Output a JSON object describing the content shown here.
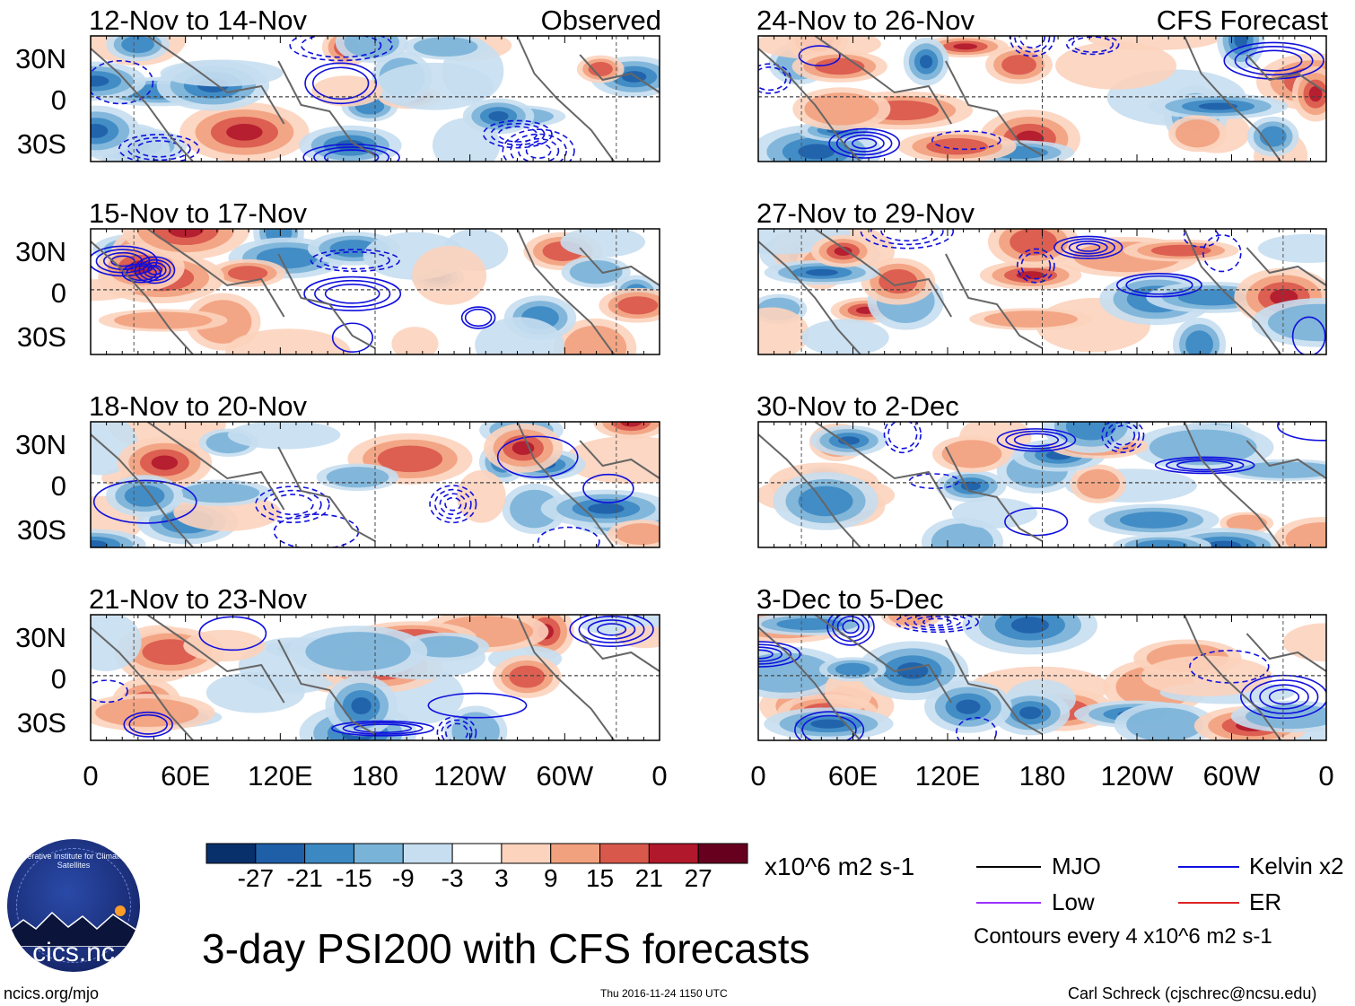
{
  "chart_data": {
    "type": "heatmap",
    "title": "3-day PSI200 with CFS forecasts",
    "variable": "PSI200",
    "units": "x10^6 m2 s-1",
    "contour_note": "Contours every 4 x10^6 m2 s-1",
    "x_tick_labels": [
      "0",
      "60E",
      "120E",
      "180",
      "120W",
      "60W",
      "0"
    ],
    "y_tick_labels": [
      "30N",
      "0",
      "30S"
    ],
    "colorbar": {
      "tick_labels": [
        "-27",
        "-21",
        "-15",
        "-9",
        "-3",
        "3",
        "9",
        "15",
        "21",
        "27"
      ],
      "colors": [
        "#08306b",
        "#1f5fa8",
        "#3c88c3",
        "#7ab3d8",
        "#c6def0",
        "#ffffff",
        "#fcd3bd",
        "#f2a17e",
        "#d9584c",
        "#b1182b",
        "#67001f"
      ]
    },
    "panels": [
      {
        "label": "12-Nov to 14-Nov",
        "tag": "Observed"
      },
      {
        "label": "15-Nov to 17-Nov",
        "tag": ""
      },
      {
        "label": "18-Nov to 20-Nov",
        "tag": ""
      },
      {
        "label": "21-Nov to 23-Nov",
        "tag": ""
      },
      {
        "label": "24-Nov to 26-Nov",
        "tag": "CFS Forecast"
      },
      {
        "label": "27-Nov to 29-Nov",
        "tag": ""
      },
      {
        "label": "30-Nov to 2-Dec",
        "tag": ""
      },
      {
        "label": "3-Dec to 5-Dec",
        "tag": ""
      }
    ],
    "legend": [
      {
        "label": "MJO",
        "color": "#000000"
      },
      {
        "label": "Kelvin x2",
        "color": "#1010dd"
      },
      {
        "label": "Low",
        "color": "#9b30ff"
      },
      {
        "label": "ER",
        "color": "#dd2222"
      }
    ]
  },
  "logo": {
    "name": "cics.nc",
    "arc_text": "Cooperative Institute for Climate and Satellites"
  },
  "footer": {
    "left": "ncics.org/mjo",
    "center": "Thu 2016-11-24 1150 UTC",
    "right": "Carl Schreck (cjschrec@ncsu.edu)"
  }
}
